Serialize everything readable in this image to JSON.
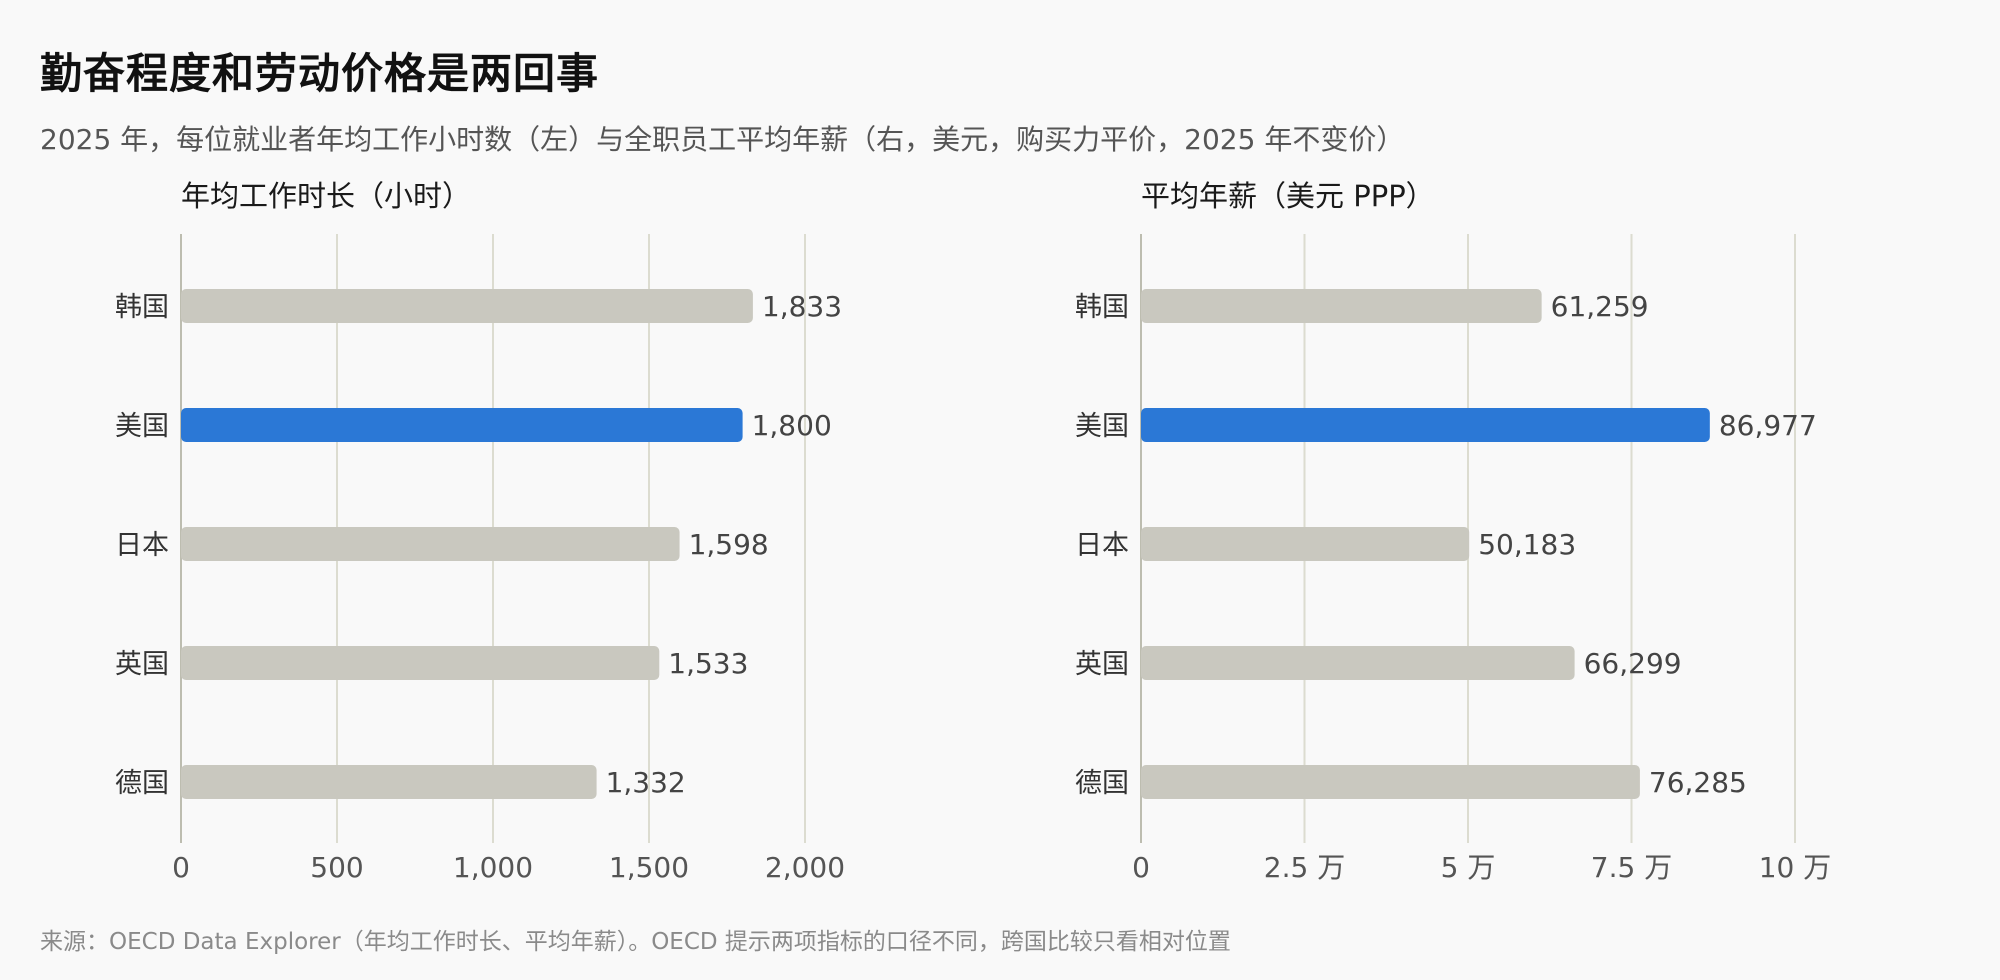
{
  "title": "勤奋程度和劳动价格是两回事",
  "subtitle": "2025 年，每位就业者年均工作小时数（左）与全职员工平均年薪（右，美元，购买力平价，2025 年不变价）",
  "footer": "来源：OECD Data Explorer（年均工作时长、平均年薪）。OECD 提示两项指标的口径不同，跨国比较只看相对位置",
  "colors": {
    "highlight": "#2b78d6",
    "default_bar": "#c9c8bf",
    "grid": "#dcdcd0"
  },
  "chart_data": [
    {
      "type": "bar",
      "orientation": "horizontal",
      "title": "年均工作时长（小时）",
      "categories": [
        "韩国",
        "美国",
        "日本",
        "英国",
        "德国"
      ],
      "values": [
        1833,
        1800,
        1598,
        1533,
        1332
      ],
      "value_labels": [
        "1,833",
        "1,800",
        "1,598",
        "1,533",
        "1,332"
      ],
      "highlight": "美国",
      "xlim": [
        0,
        2000
      ],
      "ticks": [
        0,
        500,
        1000,
        1500,
        2000
      ],
      "tick_labels": [
        "0",
        "500",
        "1,000",
        "1,500",
        "2,000"
      ],
      "grid": true
    },
    {
      "type": "bar",
      "orientation": "horizontal",
      "title": "平均年薪（美元 PPP）",
      "categories": [
        "韩国",
        "美国",
        "日本",
        "英国",
        "德国"
      ],
      "values": [
        61259,
        86977,
        50183,
        66299,
        76285
      ],
      "value_labels": [
        "61,259",
        "86,977",
        "50,183",
        "66,299",
        "76,285"
      ],
      "highlight": "美国",
      "xlim": [
        0,
        100000
      ],
      "ticks": [
        0,
        25000,
        50000,
        75000,
        100000
      ],
      "tick_labels": [
        "0",
        "2.5 万",
        "5 万",
        "7.5 万",
        "10 万"
      ],
      "grid": true
    }
  ]
}
